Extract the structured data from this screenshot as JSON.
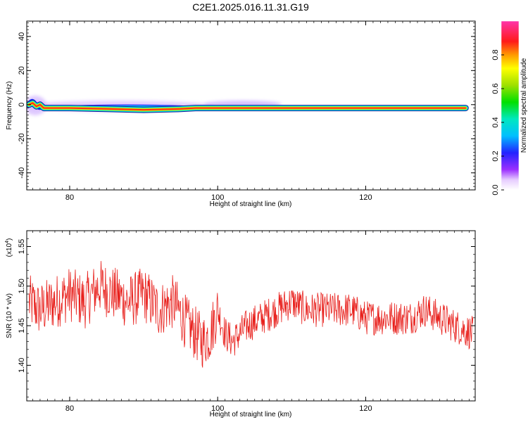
{
  "title": "C2E1.2025.016.11.31.G19",
  "colors": {
    "axis": "#000000",
    "snr_line": "#e8201c",
    "ridge_core": "#ff2a1a"
  },
  "chart_data": [
    {
      "type": "heatmap",
      "title": "C2E1.2025.016.11.31.G19",
      "xlabel": "Height of straight line (km)",
      "ylabel": "Frequency (Hz)",
      "xlim": [
        74.2,
        134.8
      ],
      "ylim": [
        -50,
        49
      ],
      "xticks": [
        80,
        100,
        120
      ],
      "yticks": [
        -40,
        -20,
        0,
        20,
        40
      ],
      "ridge": {
        "x": [
          74.5,
          75.0,
          75.5,
          76.0,
          76.5,
          77.0,
          77.5,
          80,
          85,
          90,
          95,
          97,
          100,
          105,
          110,
          120,
          130,
          133.5
        ],
        "frequency": [
          0,
          1,
          -1,
          0,
          -2,
          -2,
          -2,
          -2,
          -2.5,
          -3,
          -2.5,
          -2,
          -2,
          -2,
          -2,
          -2,
          -2,
          -2
        ]
      },
      "colorbar": {
        "label": "Normalized spectral amplitude",
        "ticks": [
          0.0,
          0.2,
          0.4,
          0.6,
          0.8
        ],
        "range": [
          0,
          1
        ]
      }
    },
    {
      "type": "line",
      "xlabel": "Height of straight line (km)",
      "ylabel": "SNR (10 * v/v)",
      "yscale_note": "(x10",
      "yscale_exp": "4",
      "yscale_close": ")",
      "xlim": [
        74.2,
        134.8
      ],
      "ylim": [
        1.355,
        1.57
      ],
      "xticks": [
        80,
        100,
        120
      ],
      "yticks": [
        1.4,
        1.45,
        1.5,
        1.55
      ],
      "series": [
        {
          "x": [
            74.5,
            76,
            78,
            80,
            82,
            84,
            86,
            88,
            90,
            92,
            94,
            96,
            97,
            98,
            99,
            100,
            101,
            102,
            104,
            106,
            108,
            110,
            112,
            114,
            116,
            118,
            120,
            122,
            124,
            126,
            128,
            130,
            132,
            134.5
          ],
          "values": [
            1.48,
            1.47,
            1.48,
            1.49,
            1.48,
            1.5,
            1.49,
            1.48,
            1.49,
            1.47,
            1.48,
            1.45,
            1.44,
            1.43,
            1.44,
            1.47,
            1.44,
            1.43,
            1.45,
            1.46,
            1.47,
            1.48,
            1.47,
            1.47,
            1.47,
            1.47,
            1.46,
            1.46,
            1.46,
            1.46,
            1.47,
            1.46,
            1.45,
            1.44
          ]
        }
      ]
    }
  ]
}
